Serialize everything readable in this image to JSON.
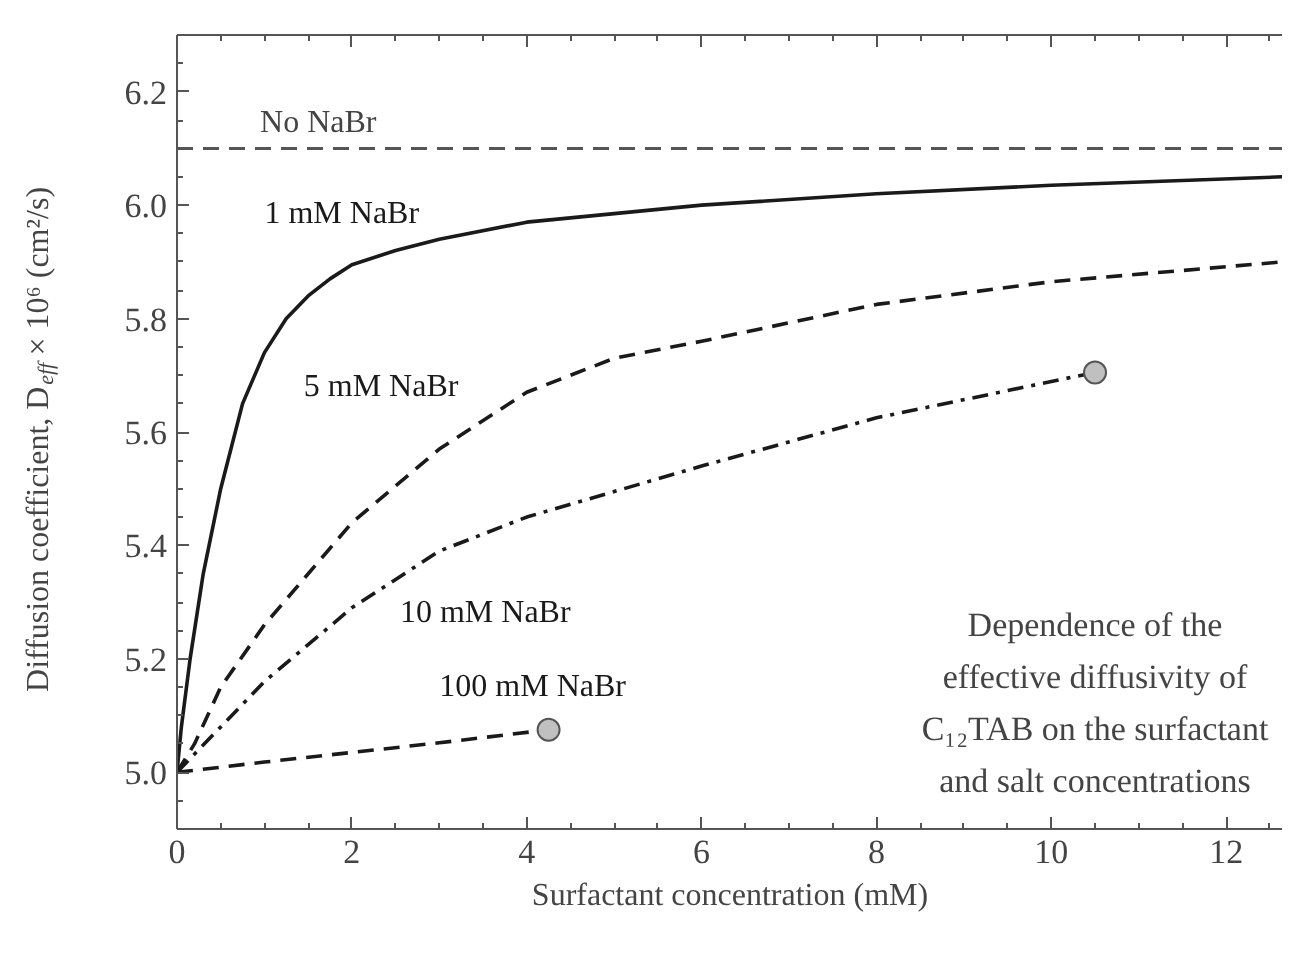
{
  "chart_data": {
    "type": "line",
    "xlabel": "Surfactant concentration (mM)",
    "ylabel": "Diffusion coefficient, D$_{eff}$ × 10⁶ (cm²/s)",
    "xlim": [
      0,
      12.65
    ],
    "ylim": [
      4.9,
      6.3
    ],
    "xticks": [
      0,
      2,
      4,
      6,
      8,
      10,
      12
    ],
    "yticks": [
      {
        "value": 5.0,
        "label": "5.0"
      },
      5.2,
      5.4,
      5.6,
      5.8,
      {
        "value": 6.0,
        "label": "6.0"
      },
      6.2
    ],
    "grid": false,
    "series": [
      {
        "name": "1 mM NaBr",
        "color": "#1a1a1a",
        "line_style": "solid",
        "x": [
          0,
          0.05,
          0.15,
          0.3,
          0.5,
          0.75,
          1,
          1.25,
          1.5,
          1.75,
          2,
          2.5,
          3,
          4,
          5,
          6,
          8,
          10,
          12.65
        ],
        "values": [
          5.0,
          5.08,
          5.2,
          5.35,
          5.5,
          5.65,
          5.74,
          5.8,
          5.84,
          5.87,
          5.895,
          5.92,
          5.94,
          5.97,
          5.985,
          6.0,
          6.02,
          6.035,
          6.05
        ]
      },
      {
        "name": "5 mM NaBr",
        "color": "#1a1a1a",
        "line_style": "dashed",
        "x": [
          0,
          0.2,
          0.5,
          1,
          2,
          3,
          4,
          5,
          6,
          8,
          10,
          12.65
        ],
        "values": [
          5.0,
          5.05,
          5.15,
          5.26,
          5.44,
          5.57,
          5.67,
          5.73,
          5.76,
          5.825,
          5.865,
          5.9
        ]
      },
      {
        "name": "10 mM NaBr",
        "color": "#1a1a1a",
        "line_style": "dashdot",
        "x": [
          0,
          0.5,
          1,
          2,
          3,
          4,
          6,
          8,
          10.5
        ],
        "values": [
          5.0,
          5.08,
          5.16,
          5.29,
          5.39,
          5.45,
          5.54,
          5.625,
          5.705
        ]
      },
      {
        "name": "100 mM NaBr",
        "color": "#1a1a1a",
        "line_style": "dashed",
        "x": [
          0,
          1,
          2,
          3,
          4.25
        ],
        "values": [
          5.0,
          5.018,
          5.035,
          5.052,
          5.075
        ]
      },
      {
        "type": "scatter",
        "color": "#c0c0c0",
        "marker": "circle",
        "x": [
          10.5,
          4.25
        ],
        "values": [
          5.705,
          5.075
        ]
      }
    ],
    "ref_lines": [
      {
        "axis": "y",
        "value": 6.1,
        "label": "No NaBr",
        "color": "#555555",
        "line_style": "dashed"
      }
    ],
    "annotations": [
      "Dependence of the effective diffusivity of C₁₂TAB on the surfactant and salt concentrations"
    ]
  }
}
